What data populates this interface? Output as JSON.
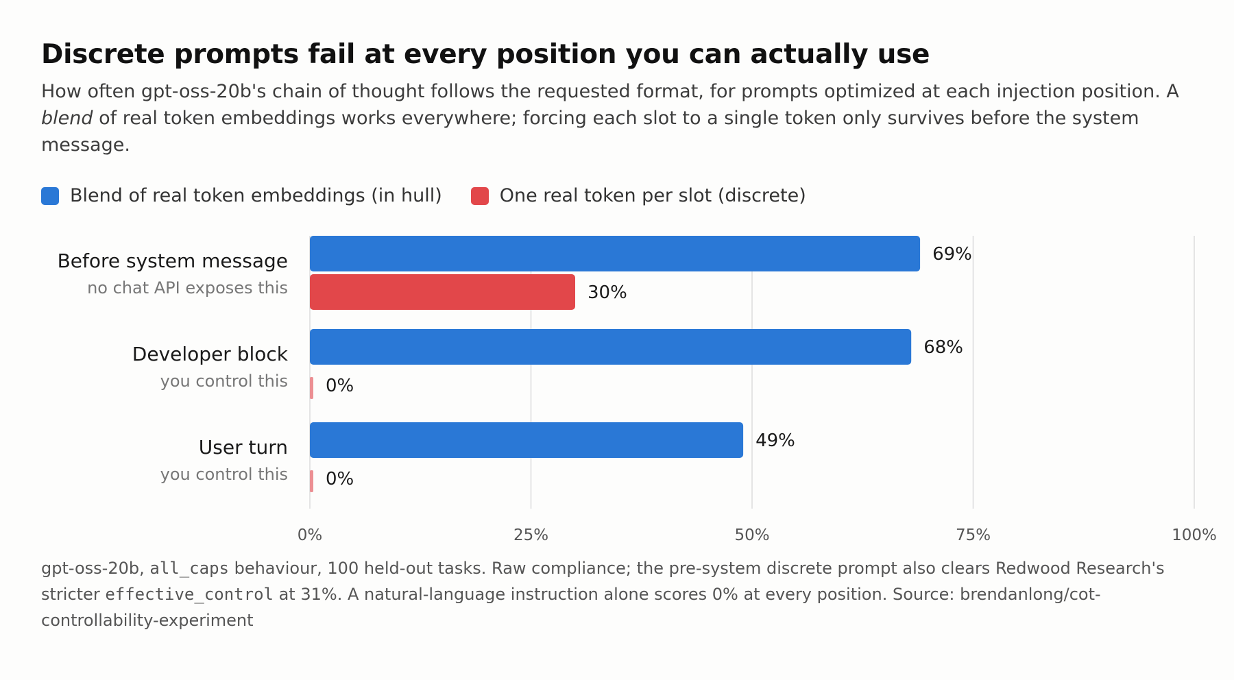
{
  "title": "Discrete prompts fail at every position you can actually use",
  "subtitle": {
    "part1": "How often gpt-oss-20b's chain of thought follows the requested format, for prompts optimized at each injection position. A ",
    "emph": "blend",
    "part2": " of real token embeddings works everywhere; forcing each slot to a single token only survives before the system message."
  },
  "colors": {
    "blend": "#2a78d6",
    "discrete": "#e2474a",
    "discrete_zero": "#ec8f93",
    "grid": "#dcdcdc"
  },
  "chart_data": {
    "type": "bar",
    "orientation": "horizontal",
    "categories": [
      "Before system message",
      "Developer block",
      "User turn"
    ],
    "category_notes": [
      "no chat API exposes this",
      "you control this",
      "you control this"
    ],
    "series": [
      {
        "name": "Blend of real token embeddings (in hull)",
        "values": [
          69,
          68,
          49
        ]
      },
      {
        "name": "One real token per slot (discrete)",
        "values": [
          30,
          0,
          0
        ]
      }
    ],
    "data_labels": [
      [
        "69%",
        "68%",
        "49%"
      ],
      [
        "30%",
        "0%",
        "0%"
      ]
    ],
    "xlim": [
      0,
      100
    ],
    "xticks": [
      0,
      25,
      50,
      75,
      100
    ],
    "xtick_labels": [
      "0%",
      "25%",
      "50%",
      "75%",
      "100%"
    ],
    "grid": true,
    "legend": "top-left"
  },
  "footnote": {
    "p1": "gpt-oss-20b, ",
    "code1": "all_caps",
    "p2": " behaviour, 100 held-out tasks. Raw compliance; the pre-system discrete prompt also clears Redwood Research's stricter ",
    "code2": "effective_control",
    "p3": " at 31%. A natural-language instruction alone scores 0% at every position. Source: brendanlong/cot-controllability-experiment"
  }
}
